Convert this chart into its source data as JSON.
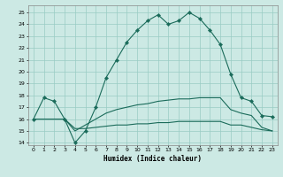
{
  "title": "",
  "xlabel": "Humidex (Indice chaleur)",
  "ylabel": "",
  "bg_color": "#cce9e4",
  "grid_color": "#99ccc4",
  "line_color": "#1a6b5a",
  "xlim": [
    -0.5,
    23.5
  ],
  "ylim": [
    13.8,
    25.6
  ],
  "yticks": [
    14,
    15,
    16,
    17,
    18,
    19,
    20,
    21,
    22,
    23,
    24,
    25
  ],
  "xticks": [
    0,
    1,
    2,
    3,
    4,
    5,
    6,
    7,
    8,
    9,
    10,
    11,
    12,
    13,
    14,
    15,
    16,
    17,
    18,
    19,
    20,
    21,
    22,
    23
  ],
  "curve1_x": [
    0,
    1,
    2,
    3,
    4,
    5,
    6,
    7,
    8,
    9,
    10,
    11,
    12,
    13,
    14,
    15,
    16,
    17,
    18,
    19,
    20,
    21,
    22,
    23
  ],
  "curve1_y": [
    16.0,
    17.8,
    17.5,
    16.0,
    14.0,
    15.0,
    17.0,
    19.5,
    21.0,
    22.5,
    23.5,
    24.3,
    24.8,
    24.0,
    24.3,
    25.0,
    24.5,
    23.5,
    22.3,
    19.8,
    17.8,
    17.5,
    16.3,
    16.2
  ],
  "curve2_x": [
    0,
    1,
    2,
    3,
    4,
    5,
    6,
    7,
    8,
    9,
    10,
    11,
    12,
    13,
    14,
    15,
    16,
    17,
    18,
    19,
    20,
    21,
    22,
    23
  ],
  "curve2_y": [
    16.0,
    16.0,
    16.0,
    16.0,
    15.0,
    15.5,
    16.0,
    16.5,
    16.8,
    17.0,
    17.2,
    17.3,
    17.5,
    17.6,
    17.7,
    17.7,
    17.8,
    17.8,
    17.8,
    16.8,
    16.5,
    16.3,
    15.3,
    15.0
  ],
  "curve3_x": [
    0,
    1,
    2,
    3,
    4,
    5,
    6,
    7,
    8,
    9,
    10,
    11,
    12,
    13,
    14,
    15,
    16,
    17,
    18,
    19,
    20,
    21,
    22,
    23
  ],
  "curve3_y": [
    16.0,
    16.0,
    16.0,
    16.0,
    15.2,
    15.2,
    15.3,
    15.4,
    15.5,
    15.5,
    15.6,
    15.6,
    15.7,
    15.7,
    15.8,
    15.8,
    15.8,
    15.8,
    15.8,
    15.5,
    15.5,
    15.3,
    15.1,
    15.0
  ]
}
